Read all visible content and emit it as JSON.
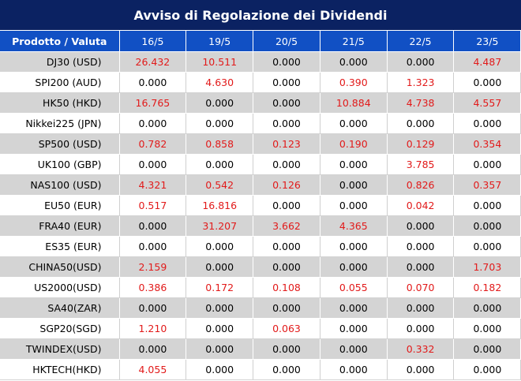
{
  "title": "Avviso di Regolazione dei Dividendi",
  "header": {
    "product_label": "Prodotto / Valuta",
    "dates": [
      "16/5",
      "19/5",
      "20/5",
      "21/5",
      "22/5",
      "23/5"
    ]
  },
  "colors": {
    "title_bg": "#0b2262",
    "header_bg": "#1150c4",
    "highlight": "#e21a1a",
    "band": "#d4d4d4"
  },
  "rows": [
    {
      "product": "DJ30 (USD)",
      "values": [
        "26.432",
        "10.511",
        "0.000",
        "0.000",
        "0.000",
        "4.487"
      ]
    },
    {
      "product": "SPI200 (AUD)",
      "values": [
        "0.000",
        "4.630",
        "0.000",
        "0.390",
        "1.323",
        "0.000"
      ]
    },
    {
      "product": "HK50 (HKD)",
      "values": [
        "16.765",
        "0.000",
        "0.000",
        "10.884",
        "4.738",
        "4.557"
      ]
    },
    {
      "product": "Nikkei225 (JPN)",
      "values": [
        "0.000",
        "0.000",
        "0.000",
        "0.000",
        "0.000",
        "0.000"
      ]
    },
    {
      "product": "SP500 (USD)",
      "values": [
        "0.782",
        "0.858",
        "0.123",
        "0.190",
        "0.129",
        "0.354"
      ]
    },
    {
      "product": "UK100 (GBP)",
      "values": [
        "0.000",
        "0.000",
        "0.000",
        "0.000",
        "3.785",
        "0.000"
      ]
    },
    {
      "product": "NAS100 (USD)",
      "values": [
        "4.321",
        "0.542",
        "0.126",
        "0.000",
        "0.826",
        "0.357"
      ]
    },
    {
      "product": "EU50 (EUR)",
      "values": [
        "0.517",
        "16.816",
        "0.000",
        "0.000",
        "0.042",
        "0.000"
      ]
    },
    {
      "product": "FRA40 (EUR)",
      "values": [
        "0.000",
        "31.207",
        "3.662",
        "4.365",
        "0.000",
        "0.000"
      ]
    },
    {
      "product": "ES35 (EUR)",
      "values": [
        "0.000",
        "0.000",
        "0.000",
        "0.000",
        "0.000",
        "0.000"
      ]
    },
    {
      "product": "CHINA50(USD)",
      "values": [
        "2.159",
        "0.000",
        "0.000",
        "0.000",
        "0.000",
        "1.703"
      ]
    },
    {
      "product": "US2000(USD)",
      "values": [
        "0.386",
        "0.172",
        "0.108",
        "0.055",
        "0.070",
        "0.182"
      ]
    },
    {
      "product": "SA40(ZAR)",
      "values": [
        "0.000",
        "0.000",
        "0.000",
        "0.000",
        "0.000",
        "0.000"
      ]
    },
    {
      "product": "SGP20(SGD)",
      "values": [
        "1.210",
        "0.000",
        "0.063",
        "0.000",
        "0.000",
        "0.000"
      ]
    },
    {
      "product": "TWINDEX(USD)",
      "values": [
        "0.000",
        "0.000",
        "0.000",
        "0.000",
        "0.332",
        "0.000"
      ]
    },
    {
      "product": "HKTECH(HKD)",
      "values": [
        "4.055",
        "0.000",
        "0.000",
        "0.000",
        "0.000",
        "0.000"
      ]
    }
  ]
}
